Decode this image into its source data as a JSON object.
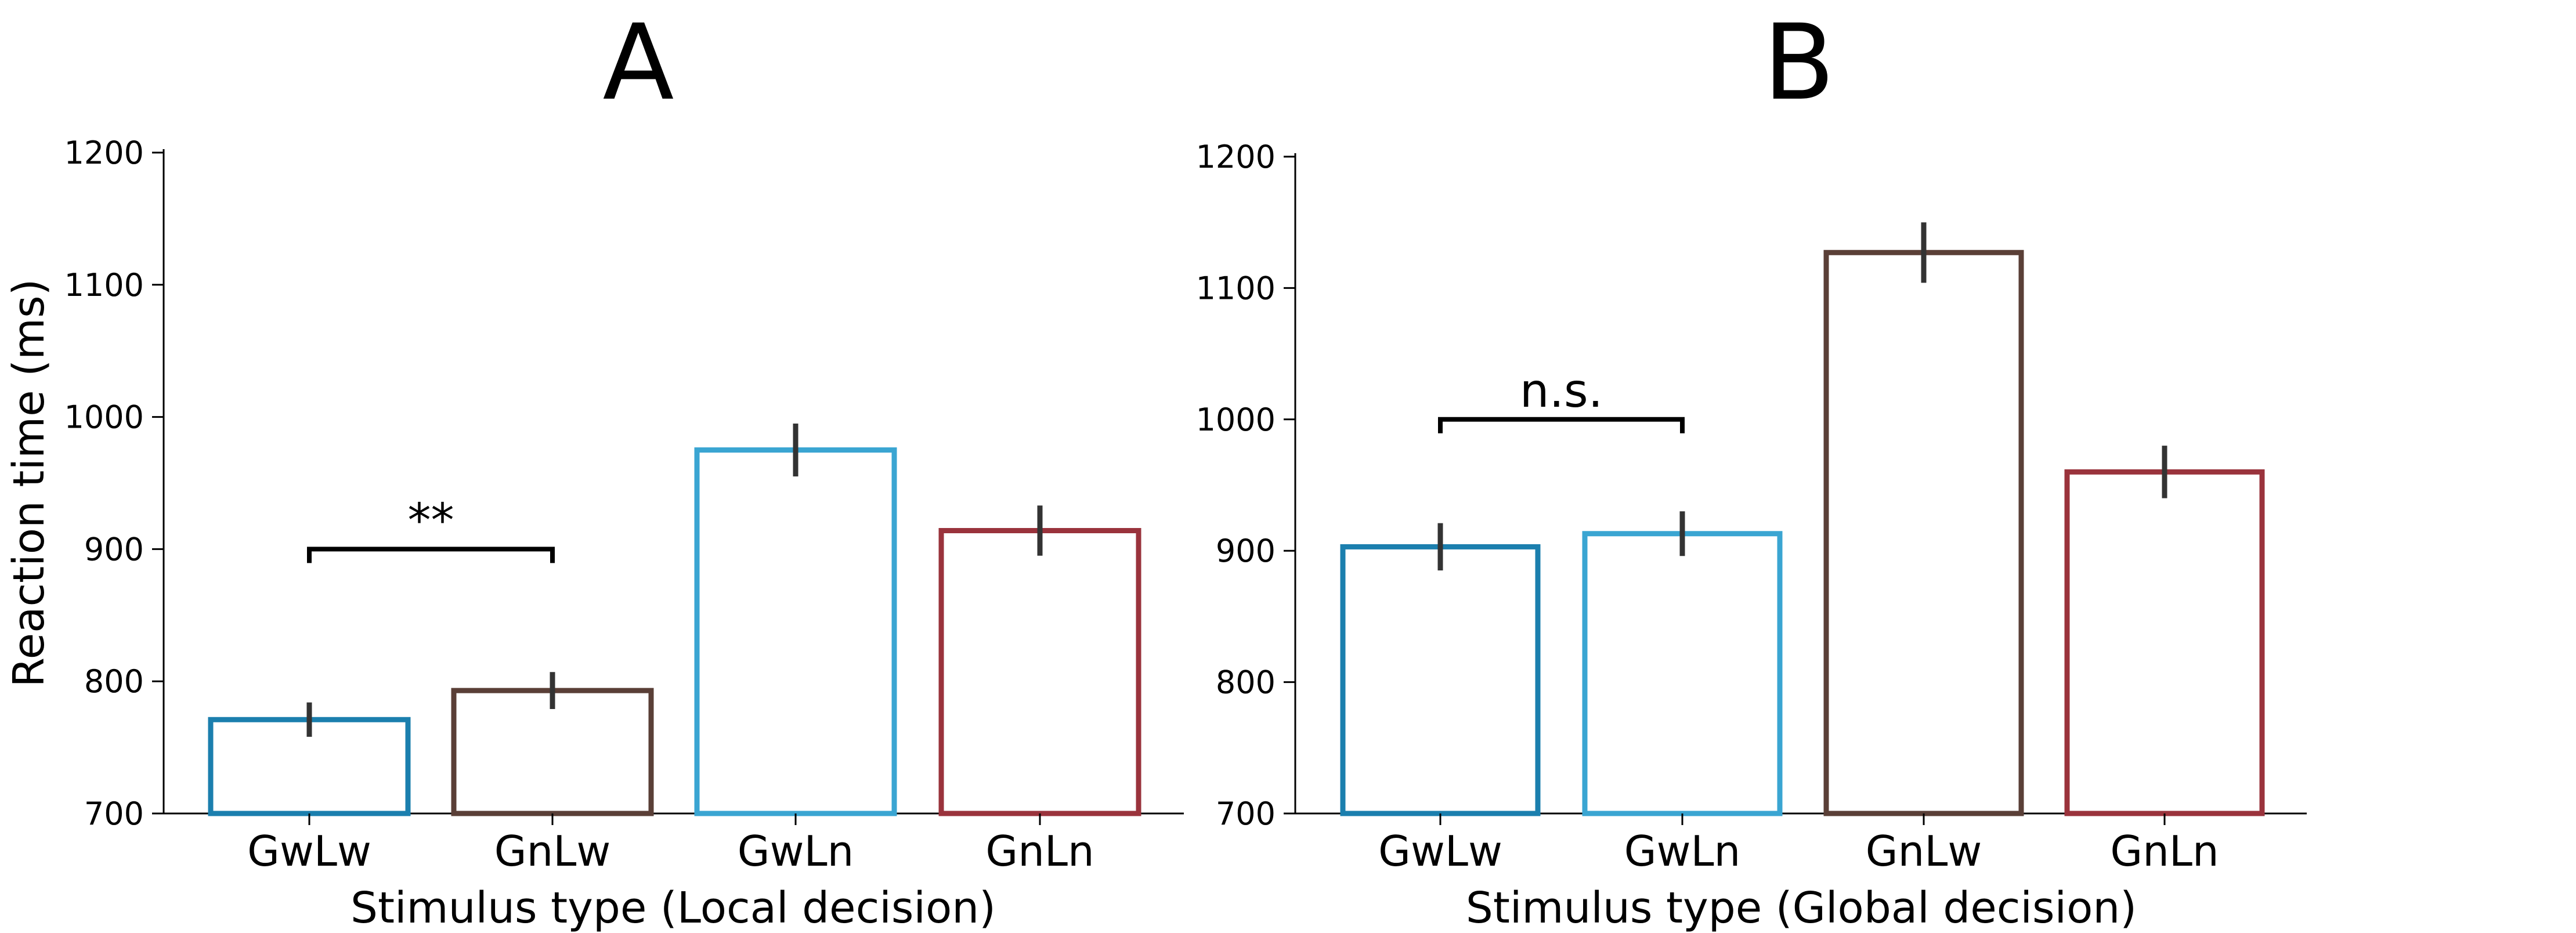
{
  "chart_data": [
    {
      "type": "bar",
      "panel": "A",
      "categories": [
        "GwLw",
        "GnLw",
        "GwLn",
        "GnLn"
      ],
      "values": [
        771,
        793,
        975,
        914
      ],
      "errors": [
        13,
        14,
        20,
        19
      ],
      "colors": [
        "#1b7fae",
        "#5a3f37",
        "#3aa5d2",
        "#9a333c"
      ],
      "xlabel": "Stimulus type (Local decision)",
      "ylabel": "Reaction time (ms)",
      "ylim": [
        700,
        1200
      ],
      "yticks": [
        700,
        800,
        900,
        1000,
        1100,
        1200
      ],
      "grid": false,
      "annotation": {
        "label": "**",
        "between": [
          0,
          1
        ],
        "y": 900
      }
    },
    {
      "type": "bar",
      "panel": "B",
      "categories": [
        "GwLw",
        "GwLn",
        "GnLw",
        "GnLn"
      ],
      "values": [
        903,
        913,
        1127,
        960
      ],
      "errors": [
        18,
        17,
        23,
        20
      ],
      "colors": [
        "#1b7fae",
        "#3aa5d2",
        "#5a3f37",
        "#9a333c"
      ],
      "xlabel": "Stimulus type (Global decision)",
      "ylabel": "",
      "ylim": [
        700,
        1200
      ],
      "yticks": [
        700,
        800,
        900,
        1000,
        1100,
        1200
      ],
      "grid": false,
      "annotation": {
        "label": "n.s.",
        "between": [
          0,
          1
        ],
        "y": 1000
      }
    }
  ]
}
